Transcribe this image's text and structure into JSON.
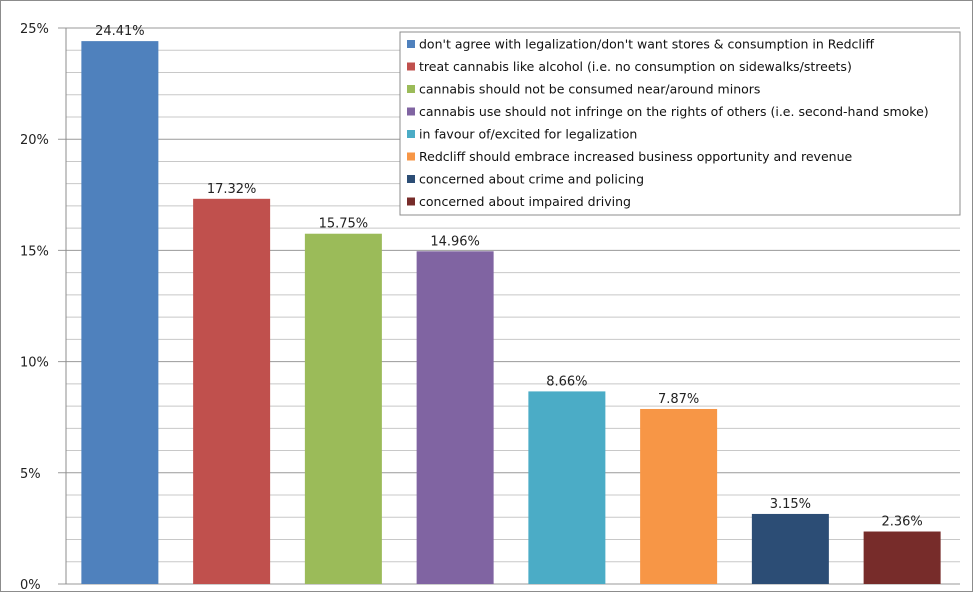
{
  "chart_data": {
    "type": "bar",
    "title": "",
    "xlabel": "",
    "ylabel": "",
    "ylim": [
      0,
      25
    ],
    "yticks": [
      "0%",
      "5%",
      "10%",
      "15%",
      "20%",
      "25%"
    ],
    "grid": true,
    "legend_position": "top-right",
    "categories": [
      "don't agree with legalization/don't want stores & consumption in Redcliff",
      "treat cannabis like alcohol (i.e. no consumption on sidewalks/streets)",
      "cannabis should not be consumed near/around minors",
      "cannabis use should not infringe on the rights of others (i.e. second-hand smoke)",
      "in favour of/excited for legalization",
      "Redcliff should embrace increased business opportunity and revenue",
      "concerned about crime and policing",
      "concerned about impaired driving"
    ],
    "values": [
      24.41,
      17.32,
      15.75,
      14.96,
      8.66,
      7.87,
      3.15,
      2.36
    ],
    "data_labels": [
      "24.41%",
      "17.32%",
      "15.75%",
      "14.96%",
      "8.66%",
      "7.87%",
      "3.15%",
      "2.36%"
    ],
    "colors": [
      "#4f81bd",
      "#c0504d",
      "#9bbb59",
      "#8064a2",
      "#4bacc6",
      "#f79646",
      "#2c4d75",
      "#772c2a"
    ]
  }
}
